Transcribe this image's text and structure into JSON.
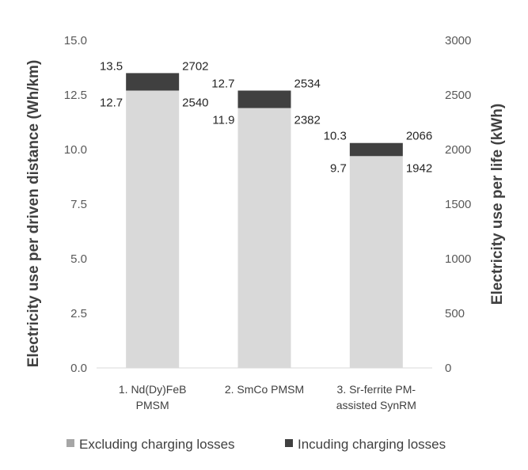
{
  "chart_data": {
    "type": "bar",
    "categories": [
      [
        "1. Nd(Dy)FeB",
        "PMSM"
      ],
      [
        "2. SmCo PMSM"
      ],
      [
        "3. Sr-ferrite PM-",
        "assisted SynRM"
      ]
    ],
    "series": [
      {
        "name": "Excluding charging losses",
        "color": "#d9d9d9",
        "values": [
          12.7,
          11.9,
          9.7
        ],
        "labels": [
          "12.7",
          "11.9",
          "9.7"
        ],
        "secondary_labels": [
          "2540",
          "2382",
          "1942"
        ]
      },
      {
        "name": "Incuding charging losses",
        "color": "#404040",
        "values": [
          13.5,
          12.7,
          10.3
        ],
        "labels": [
          "13.5",
          "12.7",
          "10.3"
        ],
        "secondary_labels": [
          "2702",
          "2534",
          "2066"
        ]
      }
    ],
    "ylabel": "Electricity use per driven distance (Wh/km)",
    "y2label": "Electricity use per life (kWh)",
    "ylim": [
      0,
      15
    ],
    "y2lim": [
      0,
      3000
    ],
    "yticks": [
      "0.0",
      "2.5",
      "5.0",
      "7.5",
      "10.0",
      "12.5",
      "15.0"
    ],
    "y2ticks": [
      "0",
      "500",
      "1000",
      "1500",
      "2000",
      "2500",
      "3000"
    ],
    "grid": false,
    "legend_position": "bottom"
  }
}
